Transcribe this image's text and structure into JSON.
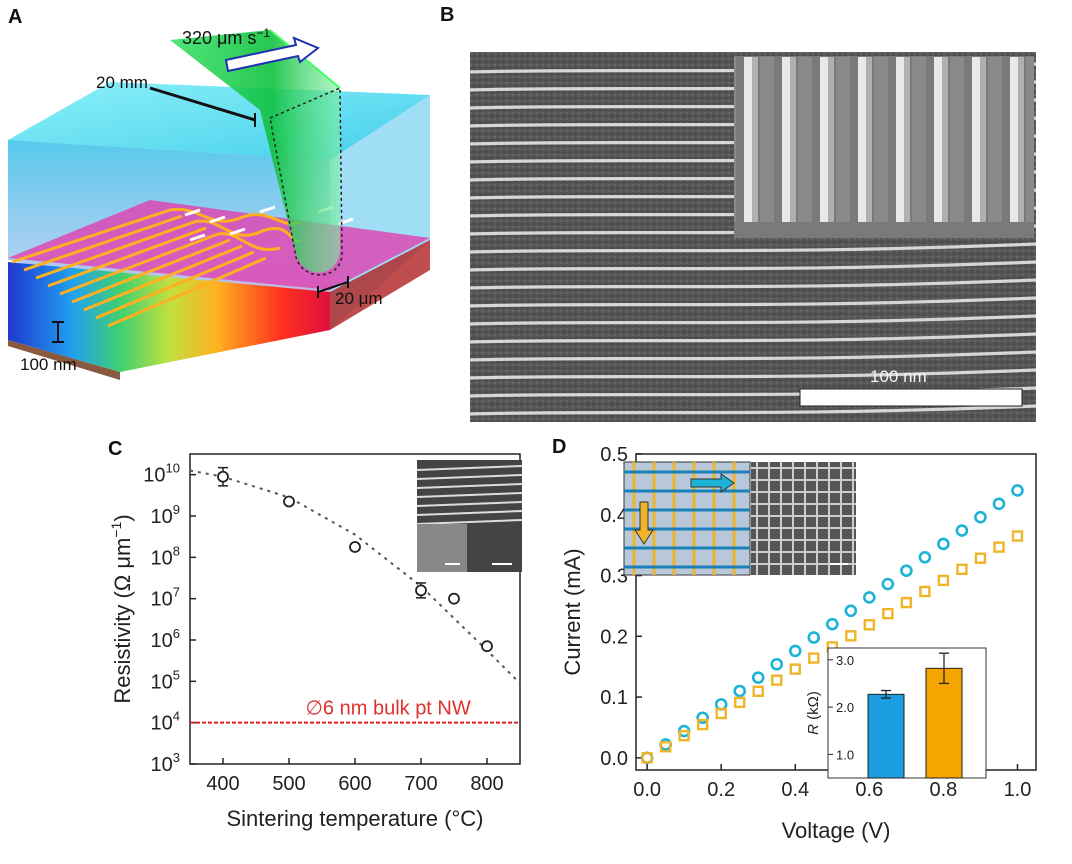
{
  "figure": {
    "panel_labels": {
      "a": "A",
      "b": "B",
      "c": "C",
      "d": "D"
    },
    "panel_a": {
      "speed_label": "320 μm s",
      "speed_exp": "−1",
      "depth_label": "20 mm",
      "width_label": "20 μm",
      "thickness_label": "100 nm"
    },
    "panel_b": {
      "scalebar_label": "100 nm"
    },
    "panel_d_inset": {
      "ylabel": "R",
      "yunit": "(kΩ)"
    }
  },
  "chart_data": [
    {
      "id": "C",
      "type": "scatter",
      "title": "",
      "xlabel": "Sintering temperature (°C)",
      "ylabel": "Resistivity (Ω μm",
      "ylabel_exp": "−1",
      "yunit_close": ")",
      "yscale": "log",
      "xlim": [
        350,
        850
      ],
      "ylim_exp": [
        3,
        10.5
      ],
      "xticks": [
        "400",
        "500",
        "600",
        "700",
        "800"
      ],
      "yticks_exp": [
        "3",
        "4",
        "5",
        "6",
        "7",
        "8",
        "9",
        "10"
      ],
      "points": [
        {
          "x": 400,
          "exp": 9.95,
          "err": 0.22
        },
        {
          "x": 500,
          "exp": 9.35,
          "err": 0.06
        },
        {
          "x": 600,
          "exp": 8.25,
          "err": 0.07
        },
        {
          "x": 700,
          "exp": 7.2,
          "err": 0.18
        },
        {
          "x": 750,
          "exp": 7.0,
          "err": 0.06
        },
        {
          "x": 800,
          "exp": 5.85,
          "err": 0.06
        }
      ],
      "fit_line": [
        [
          350,
          10.1
        ],
        [
          400,
          9.95
        ],
        [
          500,
          9.45
        ],
        [
          600,
          8.55
        ],
        [
          700,
          7.3
        ],
        [
          800,
          5.75
        ],
        [
          850,
          4.95
        ]
      ],
      "reference": {
        "exp": 4,
        "label": "∅6 nm bulk pt NW"
      }
    },
    {
      "id": "D",
      "type": "scatter",
      "title": "",
      "xlabel": "Voltage (V)",
      "ylabel": "Current (mA)",
      "xlim": [
        -0.03,
        1.05
      ],
      "ylim": [
        -0.02,
        0.5
      ],
      "xticks": [
        "0.0",
        "0.2",
        "0.4",
        "0.6",
        "0.8",
        "1.0"
      ],
      "yticks": [
        "0.0",
        "0.1",
        "0.2",
        "0.3",
        "0.4",
        "0.5"
      ],
      "series": [
        {
          "name": "horizontal",
          "color": "#1bb3d6",
          "marker": "circle",
          "slope": 0.44
        },
        {
          "name": "vertical",
          "color": "#f0b428",
          "marker": "square",
          "slope": 0.365
        }
      ],
      "x_values": [
        0,
        0.05,
        0.1,
        0.15,
        0.2,
        0.25,
        0.3,
        0.35,
        0.4,
        0.45,
        0.5,
        0.55,
        0.6,
        0.65,
        0.7,
        0.75,
        0.8,
        0.85,
        0.9,
        0.95,
        1.0
      ],
      "inset": {
        "type": "bar",
        "yticks": [
          "1.0",
          "2.0",
          "3.0"
        ],
        "ylim": [
          0.5,
          3.25
        ],
        "bars": [
          {
            "value": 2.27,
            "err": 0.08,
            "color": "#1a9ee0"
          },
          {
            "value": 2.82,
            "err": 0.32,
            "color": "#f5a500"
          }
        ]
      }
    }
  ]
}
